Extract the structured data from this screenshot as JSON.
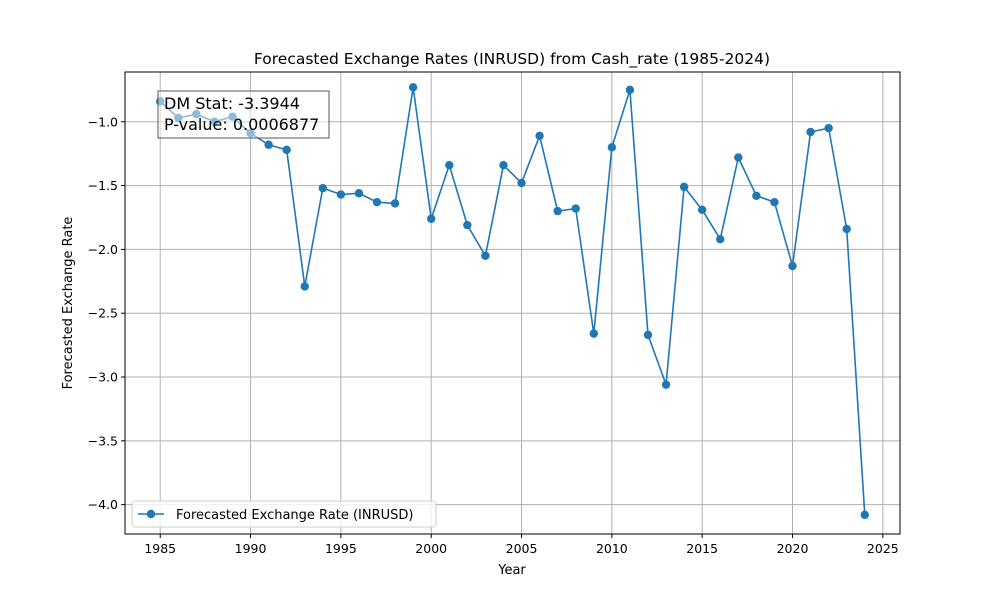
{
  "chart_data": {
    "type": "line",
    "title": "Forecasted Exchange Rates (INRUSD) from Cash_rate (1985-2024)",
    "xlabel": "Year",
    "ylabel": "Forecasted Exchange Rate",
    "xlim": [
      1983.05,
      2025.95
    ],
    "ylim": [
      -4.23,
      -0.61
    ],
    "xticks": [
      1985,
      1990,
      1995,
      2000,
      2005,
      2010,
      2015,
      2020,
      2025
    ],
    "xtick_labels": [
      "1985",
      "1990",
      "1995",
      "2000",
      "2005",
      "2010",
      "2015",
      "2020",
      "2025"
    ],
    "yticks": [
      -4.0,
      -3.5,
      -3.0,
      -2.5,
      -2.0,
      -1.5,
      -1.0
    ],
    "ytick_labels": [
      "−4.0",
      "−3.5",
      "−3.0",
      "−2.5",
      "−2.0",
      "−1.5",
      "−1.0"
    ],
    "grid": true,
    "legend_position": "lower-left",
    "color": "#1f77b4",
    "series": [
      {
        "name": "Forecasted Exchange Rate (INRUSD)",
        "x": [
          1985,
          1986,
          1987,
          1988,
          1989,
          1990,
          1991,
          1992,
          1993,
          1994,
          1995,
          1996,
          1997,
          1998,
          1999,
          2000,
          2001,
          2002,
          2003,
          2004,
          2005,
          2006,
          2007,
          2008,
          2009,
          2010,
          2011,
          2012,
          2013,
          2014,
          2015,
          2016,
          2017,
          2018,
          2019,
          2020,
          2021,
          2022,
          2023,
          2024
        ],
        "y": [
          -0.84,
          -0.97,
          -0.94,
          -1.0,
          -0.96,
          -1.09,
          -1.18,
          -1.22,
          -2.29,
          -1.52,
          -1.57,
          -1.56,
          -1.63,
          -1.64,
          -0.73,
          -1.76,
          -1.34,
          -1.81,
          -2.05,
          -1.34,
          -1.48,
          -1.11,
          -1.7,
          -1.68,
          -2.66,
          -1.2,
          -0.75,
          -2.67,
          -3.06,
          -1.51,
          -1.69,
          -1.92,
          -1.28,
          -1.58,
          -1.63,
          -2.13,
          -1.08,
          -1.05,
          -1.84,
          -4.08
        ]
      }
    ],
    "annotation": {
      "line1": "DM Stat: -3.3944",
      "line2": "P-value: 0.0006877"
    }
  }
}
